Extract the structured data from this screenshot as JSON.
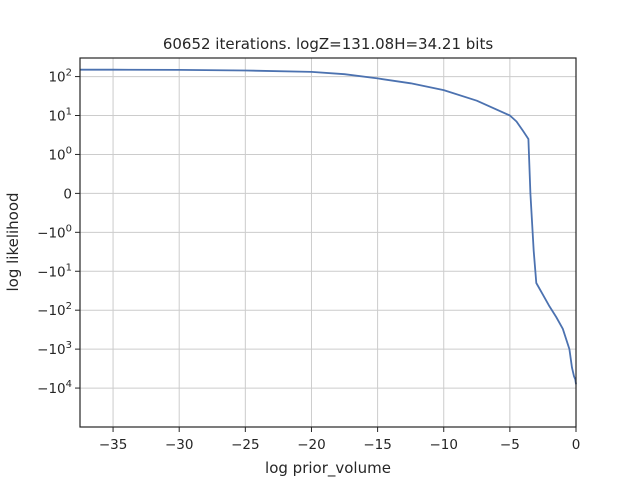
{
  "chart_data": {
    "type": "line",
    "title": "60652 iterations. logZ=131.08H=34.21 bits",
    "xlabel": "log prior_volume",
    "ylabel": "log likelihood",
    "xlim": [
      -37.5,
      0
    ],
    "yscale": "symlog",
    "linthresh": 1,
    "ylim": [
      -100000,
      300
    ],
    "grid": true,
    "x_ticks": [
      {
        "value": -35,
        "label": "−35"
      },
      {
        "value": -30,
        "label": "−30"
      },
      {
        "value": -25,
        "label": "−25"
      },
      {
        "value": -20,
        "label": "−20"
      },
      {
        "value": -15,
        "label": "−15"
      },
      {
        "value": -10,
        "label": "−10"
      },
      {
        "value": -5,
        "label": "−5"
      },
      {
        "value": 0,
        "label": "0"
      }
    ],
    "y_ticks": [
      {
        "value": 100,
        "base": "10",
        "exp": "2",
        "neg": false
      },
      {
        "value": 10,
        "base": "10",
        "exp": "1",
        "neg": false
      },
      {
        "value": 1,
        "base": "10",
        "exp": "0",
        "neg": false
      },
      {
        "value": 0,
        "base": "0",
        "exp": "",
        "neg": false
      },
      {
        "value": -1,
        "base": "10",
        "exp": "0",
        "neg": true
      },
      {
        "value": -10,
        "base": "10",
        "exp": "1",
        "neg": true
      },
      {
        "value": -100,
        "base": "10",
        "exp": "2",
        "neg": true
      },
      {
        "value": -1000,
        "base": "10",
        "exp": "3",
        "neg": true
      },
      {
        "value": -10000,
        "base": "10",
        "exp": "4",
        "neg": true
      }
    ],
    "series": [
      {
        "color": "#4c72b0",
        "x": [
          -37.5,
          -35,
          -30,
          -25,
          -20,
          -17.5,
          -15,
          -12.5,
          -10,
          -7.5,
          -5,
          -4.5,
          -4,
          -3.6,
          -3.45,
          -3.2,
          -3,
          -2.5,
          -2,
          -1.5,
          -1,
          -0.5,
          -0.3,
          -0.15,
          -0.05,
          0
        ],
        "y": [
          150,
          150,
          148,
          143,
          132,
          115,
          90,
          67,
          45,
          24,
          10,
          7,
          4,
          2.5,
          0,
          -3,
          -20,
          -40,
          -80,
          -150,
          -300,
          -1000,
          -3000,
          -5000,
          -6000,
          -8000
        ]
      }
    ]
  }
}
